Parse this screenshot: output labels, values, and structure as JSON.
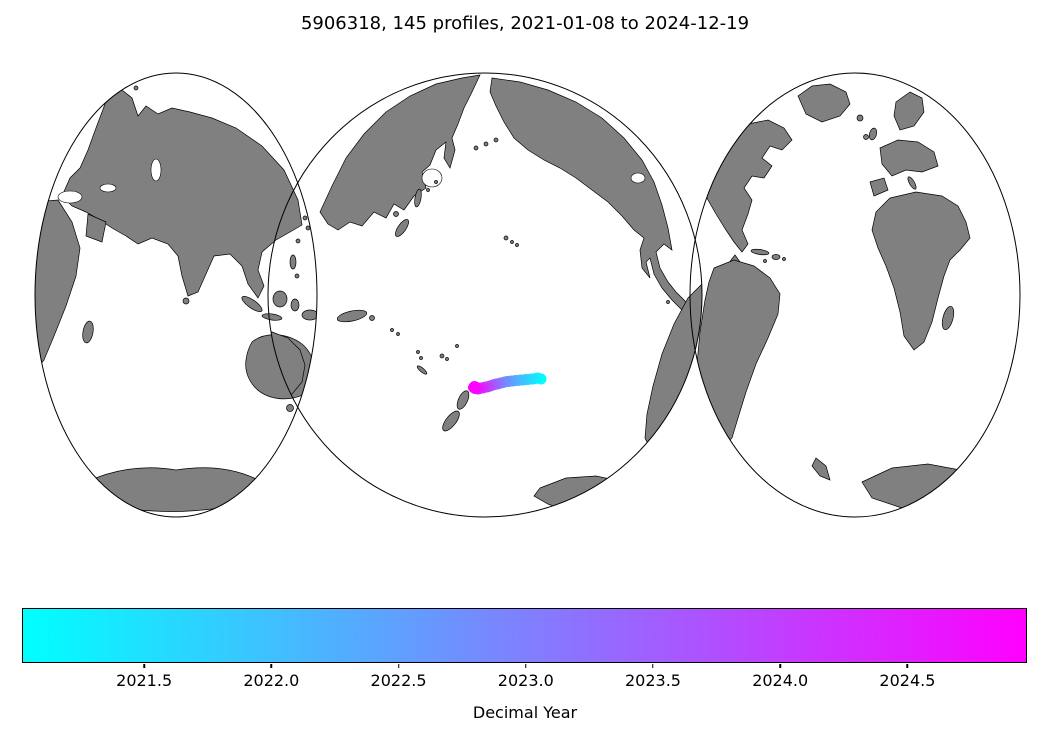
{
  "figure": {
    "title": "5906318, 145 profiles, 2021-01-08 to 2024-12-19"
  },
  "chart_data": {
    "type": "scatter",
    "title": "5906318, 145 profiles, 2021-01-08 to 2024-12-19",
    "float_id": "5906318",
    "n_profiles": 145,
    "start_date": "2021-01-08",
    "end_date": "2024-12-19",
    "map_style": "interrupted ocean-centered world map, three lobes, gray land on white ocean",
    "colormap": {
      "name": "cool",
      "start": "#00ffff",
      "end": "#ff00ff"
    },
    "colorbar": {
      "label": "Decimal Year",
      "min": 2021.02,
      "max": 2024.97,
      "orientation": "horizontal",
      "ticks": [
        "2021.5",
        "2022.0",
        "2022.5",
        "2023.0",
        "2023.5",
        "2024.0",
        "2024.5"
      ],
      "tick_values": [
        2021.5,
        2022.0,
        2022.5,
        2023.0,
        2023.5,
        2024.0,
        2024.5
      ]
    },
    "marker_radius_px": 5.5,
    "trajectory": [
      {
        "t": 2021.03,
        "x": 541.0,
        "y": 379.0
      },
      {
        "t": 2021.14,
        "x": 538.0,
        "y": 378.0
      },
      {
        "t": 2021.25,
        "x": 535.5,
        "y": 378.5
      },
      {
        "t": 2021.36,
        "x": 533.0,
        "y": 379.0
      },
      {
        "t": 2021.47,
        "x": 530.5,
        "y": 379.0
      },
      {
        "t": 2021.58,
        "x": 528.0,
        "y": 379.5
      },
      {
        "t": 2021.69,
        "x": 525.5,
        "y": 379.5
      },
      {
        "t": 2021.8,
        "x": 523.0,
        "y": 380.0
      },
      {
        "t": 2021.91,
        "x": 520.5,
        "y": 380.0
      },
      {
        "t": 2022.02,
        "x": 518.0,
        "y": 380.5
      },
      {
        "t": 2022.13,
        "x": 515.5,
        "y": 380.5
      },
      {
        "t": 2022.24,
        "x": 513.0,
        "y": 381.0
      },
      {
        "t": 2022.36,
        "x": 511.0,
        "y": 381.0
      },
      {
        "t": 2022.47,
        "x": 509.0,
        "y": 381.5
      },
      {
        "t": 2022.58,
        "x": 507.0,
        "y": 381.5
      },
      {
        "t": 2022.69,
        "x": 505.0,
        "y": 382.0
      },
      {
        "t": 2022.8,
        "x": 503.0,
        "y": 382.5
      },
      {
        "t": 2022.91,
        "x": 501.0,
        "y": 383.0
      },
      {
        "t": 2023.02,
        "x": 499.0,
        "y": 383.5
      },
      {
        "t": 2023.13,
        "x": 497.5,
        "y": 384.0
      },
      {
        "t": 2023.24,
        "x": 496.0,
        "y": 384.0
      },
      {
        "t": 2023.36,
        "x": 494.5,
        "y": 384.5
      },
      {
        "t": 2023.47,
        "x": 493.0,
        "y": 385.0
      },
      {
        "t": 2023.58,
        "x": 491.5,
        "y": 385.5
      },
      {
        "t": 2023.69,
        "x": 490.0,
        "y": 386.0
      },
      {
        "t": 2023.8,
        "x": 488.5,
        "y": 386.5
      },
      {
        "t": 2023.91,
        "x": 487.0,
        "y": 387.0
      },
      {
        "t": 2024.02,
        "x": 485.5,
        "y": 387.0
      },
      {
        "t": 2024.13,
        "x": 484.0,
        "y": 387.5
      },
      {
        "t": 2024.24,
        "x": 482.5,
        "y": 388.0
      },
      {
        "t": 2024.36,
        "x": 481.0,
        "y": 388.0
      },
      {
        "t": 2024.47,
        "x": 479.5,
        "y": 388.5
      },
      {
        "t": 2024.58,
        "x": 478.0,
        "y": 389.0
      },
      {
        "t": 2024.69,
        "x": 476.5,
        "y": 387.5
      },
      {
        "t": 2024.8,
        "x": 475.0,
        "y": 388.5
      },
      {
        "t": 2024.9,
        "x": 473.5,
        "y": 387.5
      },
      {
        "t": 2024.96,
        "x": 474.5,
        "y": 386.5
      }
    ]
  }
}
